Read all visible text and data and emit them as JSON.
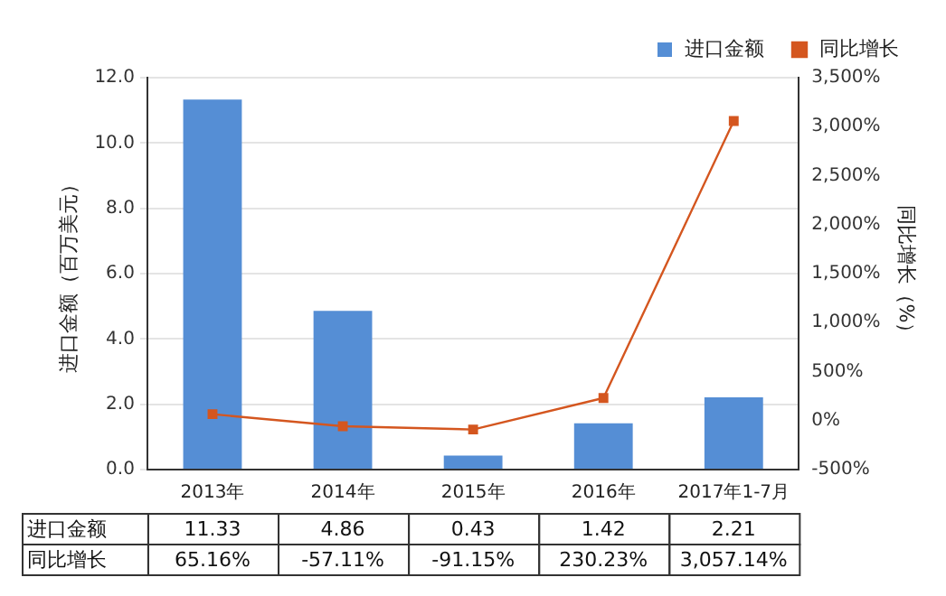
{
  "chart_data": {
    "type": "bar",
    "ylabel": "进口金额（百万美元）",
    "y2label": "同比增长（%）",
    "categories": [
      "2013年",
      "2014年",
      "2015年",
      "2016年",
      "2017年1-7月"
    ],
    "series": [
      {
        "name": "进口金额",
        "color": "#558ed5",
        "values": [
          11.33,
          4.86,
          0.43,
          1.42,
          2.21
        ],
        "value_labels": [
          "11.33",
          "4.86",
          "0.43",
          "1.42",
          "2.21"
        ]
      },
      {
        "name": "同比增长",
        "type": "line",
        "axis": "y2",
        "color": "#d4561f",
        "marker": "square",
        "values": [
          65.16,
          -57.11,
          -91.15,
          230.23,
          3057.14
        ],
        "value_labels": [
          "65.16%",
          "-57.11%",
          "-91.15%",
          "230.23%",
          "3,057.14%"
        ]
      }
    ],
    "ylim": [
      0,
      12
    ],
    "yticks": [
      {
        "value": 0,
        "label": "0.0"
      },
      {
        "value": 2,
        "label": "2.0"
      },
      {
        "value": 4,
        "label": "4.0"
      },
      {
        "value": 6,
        "label": "6.0"
      },
      {
        "value": 8,
        "label": "8.0"
      },
      {
        "value": 10,
        "label": "10.0"
      },
      {
        "value": 12,
        "label": "12.0"
      }
    ],
    "y2lim": [
      -500,
      3500
    ],
    "y2ticks": [
      {
        "value": -500,
        "label": "-500%"
      },
      {
        "value": 0,
        "label": "0%"
      },
      {
        "value": 500,
        "label": "500%"
      },
      {
        "value": 1000,
        "label": "1,000%"
      },
      {
        "value": 1500,
        "label": "1,500%"
      },
      {
        "value": 2000,
        "label": "2,000%"
      },
      {
        "value": 2500,
        "label": "2,500%"
      },
      {
        "value": 3000,
        "label": "3,000%"
      },
      {
        "value": 3500,
        "label": "3,500%"
      }
    ],
    "grid": "y",
    "legend": "top right"
  }
}
